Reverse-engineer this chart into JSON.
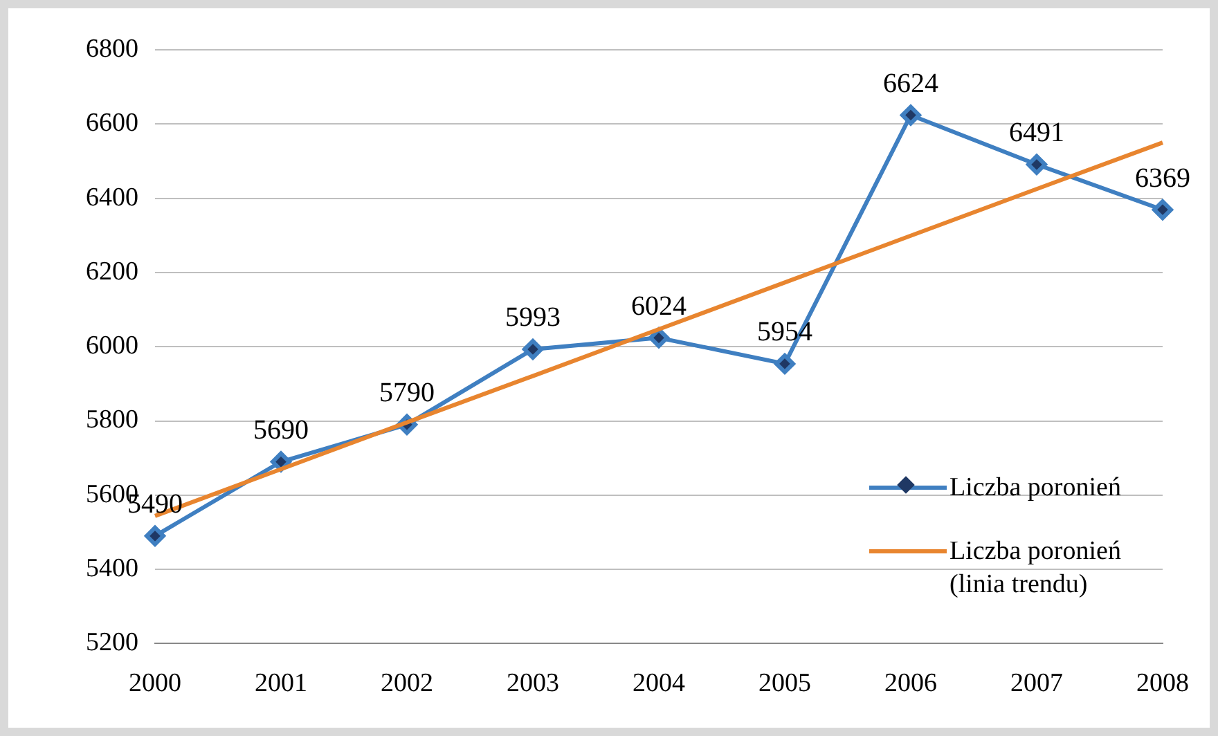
{
  "chart_data": {
    "type": "line",
    "categories": [
      "2000",
      "2001",
      "2002",
      "2003",
      "2004",
      "2005",
      "2006",
      "2007",
      "2008"
    ],
    "series": [
      {
        "name": "Liczba poronień",
        "color": "#3f7fc1",
        "values": [
          5490,
          5690,
          5790,
          5993,
          6024,
          5954,
          6624,
          6491,
          6369
        ],
        "marker": "diamond",
        "data_labels": true
      },
      {
        "name": "Liczba poronień (linia trendu)",
        "color": "#e8852f",
        "values": [
          5544,
          5670,
          5796,
          5921,
          6047,
          6173,
          6299,
          6425,
          6550
        ],
        "marker": "none"
      }
    ],
    "ylim": [
      5200,
      6800
    ],
    "yticks": [
      5200,
      5400,
      5600,
      5800,
      6000,
      6200,
      6400,
      6600,
      6800
    ],
    "grid": "y",
    "legend": "bottom right"
  }
}
